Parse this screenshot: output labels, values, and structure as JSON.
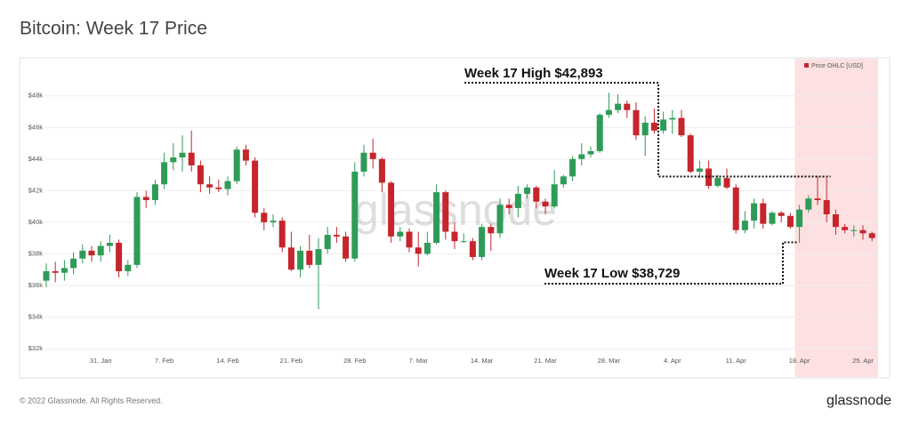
{
  "chart_data": {
    "type": "candlestick",
    "title": "Bitcoin: Week 17 Price",
    "watermark": "glassnode",
    "footer": "© 2022 Glassnode. All Rights Reserved.",
    "brand": "glassnode",
    "categories": [
      null,
      null,
      null,
      null,
      null,
      null,
      "31. Jan",
      null,
      null,
      null,
      null,
      null,
      null,
      "7. Feb",
      null,
      null,
      null,
      null,
      null,
      null,
      "14. Feb",
      null,
      null,
      null,
      null,
      null,
      null,
      "21. Feb",
      null,
      null,
      null,
      null,
      null,
      null,
      "28. Feb",
      null,
      null,
      null,
      null,
      null,
      null,
      "7. Mar",
      null,
      null,
      null,
      null,
      null,
      null,
      "14. Mar",
      null,
      null,
      null,
      null,
      null,
      null,
      "21. Mar",
      null,
      null,
      null,
      null,
      null,
      null,
      "28. Mar",
      null,
      null,
      null,
      null,
      null,
      null,
      "4. Apr",
      null,
      null,
      null,
      null,
      null,
      null,
      "11. Apr",
      null,
      null,
      null,
      null,
      null,
      null,
      "18. Apr",
      null,
      null,
      null,
      null,
      null,
      null,
      "25. Apr",
      null
    ],
    "series": [
      {
        "name": "Price OHLC [USD]",
        "up_color": "#2e9b58",
        "down_color": "#c5252b",
        "open": [
          36300,
          36900,
          36800,
          37100,
          37700,
          38200,
          37900,
          38500,
          38700,
          36900,
          37300,
          41600,
          41400,
          42400,
          43800,
          44100,
          44400,
          43600,
          42400,
          42200,
          42100,
          42600,
          44600,
          43900,
          40600,
          40000,
          40100,
          38400,
          37000,
          38200,
          37300,
          38300,
          39200,
          39100,
          37700,
          43200,
          44400,
          44000,
          42500,
          39100,
          39400,
          38400,
          38000,
          38700,
          41900,
          39400,
          38800,
          38800,
          37800,
          39700,
          39300,
          41100,
          40900,
          41800,
          42200,
          41300,
          41000,
          42400,
          42900,
          44000,
          44300,
          44500,
          46800,
          47100,
          47500,
          47100,
          45500,
          46300,
          45800,
          46500,
          46600,
          45500,
          43200,
          43400,
          42300,
          42800,
          42200,
          39500,
          40100,
          41200,
          39900,
          40600,
          40400,
          39700,
          40800,
          41500,
          41400,
          40500,
          39700,
          39500,
          39500,
          39300
        ],
        "high": [
          37400,
          37500,
          37600,
          38100,
          38600,
          38500,
          38800,
          39200,
          38900,
          37600,
          41900,
          42000,
          42700,
          44400,
          45000,
          45500,
          45800,
          43900,
          42900,
          42700,
          42900,
          44800,
          44900,
          44100,
          40900,
          40500,
          40300,
          39400,
          38500,
          39200,
          39000,
          39700,
          39700,
          39400,
          43800,
          44900,
          45300,
          44100,
          42600,
          39700,
          39600,
          39400,
          39400,
          42400,
          42000,
          40000,
          39300,
          39000,
          39900,
          39900,
          41500,
          41500,
          42300,
          42400,
          42300,
          41500,
          43300,
          43000,
          44200,
          45000,
          44800,
          46900,
          48200,
          48100,
          47700,
          47600,
          46700,
          47200,
          47000,
          47100,
          47100,
          45600,
          43900,
          43900,
          43000,
          43400,
          42400,
          40700,
          41500,
          41500,
          40700,
          40700,
          40600,
          41100,
          41700,
          42900,
          42800,
          40800,
          39900,
          39800,
          39800,
          39400
        ],
        "low": [
          35900,
          36200,
          36300,
          36700,
          37400,
          37500,
          37500,
          38100,
          36500,
          36600,
          37100,
          40900,
          41100,
          42100,
          43300,
          43200,
          43200,
          41900,
          41800,
          41900,
          41700,
          42400,
          43600,
          40300,
          39500,
          39700,
          38100,
          36900,
          36500,
          37100,
          34500,
          38000,
          38700,
          37500,
          37500,
          42900,
          43400,
          41900,
          38700,
          38800,
          38100,
          37200,
          37900,
          38600,
          38900,
          38300,
          38700,
          37600,
          37600,
          38200,
          39000,
          40500,
          40300,
          41500,
          40900,
          40500,
          40900,
          42200,
          42600,
          43600,
          44100,
          44400,
          46600,
          46900,
          46600,
          45200,
          44200,
          45600,
          45600,
          45600,
          45400,
          43100,
          42800,
          42100,
          42200,
          42100,
          39300,
          39300,
          39600,
          39600,
          39800,
          40000,
          39600,
          38700,
          40600,
          41100,
          40000,
          39200,
          39300,
          39100,
          38900,
          38800
        ],
        "close": [
          36900,
          36800,
          37100,
          37700,
          38200,
          37900,
          38500,
          38700,
          36900,
          37300,
          41600,
          41400,
          42400,
          43800,
          44100,
          44400,
          43600,
          42400,
          42200,
          42100,
          42600,
          44600,
          43900,
          40600,
          40000,
          40100,
          38400,
          37000,
          38200,
          37300,
          38300,
          39200,
          39100,
          37700,
          43200,
          44400,
          44000,
          42500,
          39100,
          39400,
          38400,
          38000,
          38700,
          41900,
          39400,
          38800,
          38800,
          37800,
          39700,
          39300,
          41100,
          40900,
          41800,
          42200,
          41300,
          41000,
          42400,
          42900,
          44000,
          44300,
          44500,
          46800,
          47100,
          47500,
          47100,
          45500,
          46300,
          45800,
          46500,
          46600,
          45500,
          43200,
          43400,
          42300,
          42800,
          42200,
          39500,
          40100,
          41200,
          39900,
          40600,
          40400,
          39700,
          40800,
          41500,
          41400,
          40500,
          39700,
          39500,
          39500,
          39300,
          39000
        ]
      }
    ],
    "ylim": [
      32000,
      49000
    ],
    "yticks": [
      {
        "value": 32000,
        "label": "$32k"
      },
      {
        "value": 34000,
        "label": "$34k"
      },
      {
        "value": 36000,
        "label": "$36k"
      },
      {
        "value": 38000,
        "label": "$38k"
      },
      {
        "value": 40000,
        "label": "$40k"
      },
      {
        "value": 42000,
        "label": "$42k"
      },
      {
        "value": 44000,
        "label": "$44k"
      },
      {
        "value": 46000,
        "label": "$46k"
      },
      {
        "value": 48000,
        "label": "$48k"
      }
    ],
    "grid": true,
    "legend": "top-right",
    "highlight_from": "18. Apr",
    "highlight_color": "#fde1e2",
    "annotations": [
      {
        "text": "Week 17 High $42,893",
        "value": 42893,
        "side": "above"
      },
      {
        "text": "Week 17 Low $38,729",
        "value": 38729,
        "side": "below"
      }
    ]
  }
}
